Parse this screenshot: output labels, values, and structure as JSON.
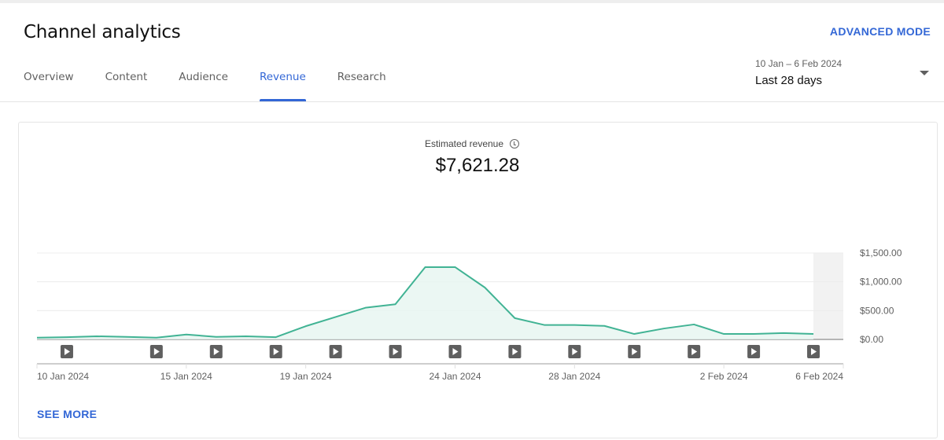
{
  "header": {
    "title": "Channel analytics",
    "advanced_mode": "ADVANCED MODE",
    "tabs": [
      "Overview",
      "Content",
      "Audience",
      "Revenue",
      "Research"
    ],
    "active_tab": "Revenue",
    "date_range": "10 Jan – 6 Feb 2024",
    "date_preset": "Last 28 days"
  },
  "metric": {
    "label": "Estimated revenue",
    "value": "$7,621.28"
  },
  "see_more": "SEE MORE",
  "colors": {
    "accent": "#3367d6",
    "line": "#41b394",
    "fill": "#e6f5f0"
  },
  "chart_data": {
    "type": "area",
    "title": "Estimated revenue",
    "x_start": "10 Jan 2024",
    "days": [
      "10 Jan",
      "11 Jan",
      "12 Jan",
      "13 Jan",
      "14 Jan",
      "15 Jan",
      "16 Jan",
      "17 Jan",
      "18 Jan",
      "19 Jan",
      "20 Jan",
      "21 Jan",
      "22 Jan",
      "23 Jan",
      "24 Jan",
      "25 Jan",
      "26 Jan",
      "27 Jan",
      "28 Jan",
      "29 Jan",
      "30 Jan",
      "31 Jan",
      "1 Feb",
      "2 Feb",
      "3 Feb",
      "4 Feb",
      "5 Feb"
    ],
    "values": [
      30,
      40,
      55,
      45,
      30,
      85,
      45,
      55,
      40,
      230,
      390,
      550,
      610,
      1255,
      1255,
      900,
      370,
      250,
      250,
      235,
      95,
      190,
      260,
      95,
      95,
      110,
      95
    ],
    "total_days": 28,
    "partial_last_day": "6 Feb 2024",
    "ylim": [
      0,
      1500
    ],
    "y_ticks": [
      0,
      500,
      1000,
      1500
    ],
    "y_tick_labels": [
      "$0.00",
      "$500.00",
      "$1,000.00",
      "$1,500.00"
    ],
    "x_tick_labels": [
      {
        "day_index": 0,
        "label": "10 Jan 2024"
      },
      {
        "day_index": 5,
        "label": "15 Jan 2024"
      },
      {
        "day_index": 9,
        "label": "19 Jan 2024"
      },
      {
        "day_index": 14,
        "label": "24 Jan 2024"
      },
      {
        "day_index": 18,
        "label": "28 Jan 2024"
      },
      {
        "day_index": 23,
        "label": "2 Feb 2024"
      },
      {
        "day_index": 27,
        "label": "6 Feb 2024"
      }
    ],
    "video_markers_day_index": [
      1,
      4,
      6,
      8,
      10,
      12,
      14,
      16,
      18,
      20,
      22,
      24,
      26
    ],
    "grid": true
  }
}
